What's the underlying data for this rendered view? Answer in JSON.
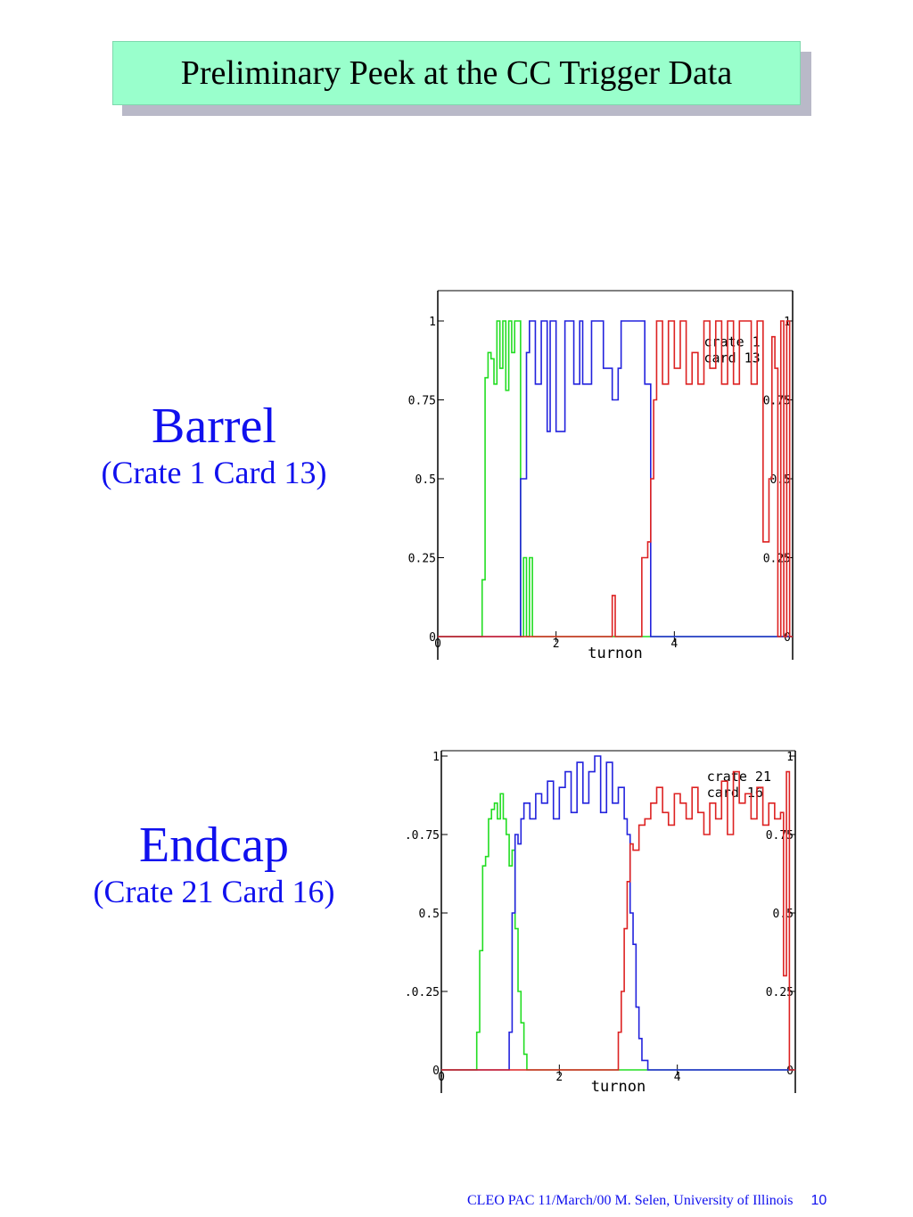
{
  "title": "Preliminary Peek at the CC Trigger Data",
  "barrel": {
    "heading": "Barrel",
    "subheading": "(Crate 1 Card 13)"
  },
  "endcap": {
    "heading": "Endcap",
    "subheading": "(Crate 21 Card 16)"
  },
  "footer": {
    "text": "CLEO PAC  11/March/00  M. Selen, University of Illinois",
    "page": "10"
  },
  "colors": {
    "green": "#22dd22",
    "blue": "#2222dd",
    "red": "#dd2222",
    "label_blue": "#1010ee",
    "title_bg": "#99ffcc"
  },
  "chart_data": [
    {
      "type": "line",
      "xlabel": "turnon",
      "xlim": [
        0,
        6
      ],
      "ylim": [
        0,
        1
      ],
      "x_ticks": [
        "0",
        "2",
        "4"
      ],
      "y_ticks_left": [
        "0",
        ".0.25",
        "0.5",
        ".0.75",
        "1"
      ],
      "y_ticks_right": [
        "0",
        "0.25",
        "0.5",
        "0.75",
        "1"
      ],
      "annotation": [
        "crate 1",
        "card 13"
      ],
      "series": [
        {
          "color": "green",
          "x": [
            0,
            0.75,
            0.8,
            0.85,
            0.9,
            0.95,
            1.0,
            1.05,
            1.1,
            1.15,
            1.2,
            1.25,
            1.3,
            1.35,
            1.4,
            1.45,
            1.5,
            1.55,
            1.6,
            6
          ],
          "y": [
            0,
            0.18,
            0.82,
            0.9,
            0.88,
            0.8,
            1.0,
            0.85,
            1.0,
            0.78,
            1.0,
            0.9,
            1.0,
            1.0,
            0.0,
            0.25,
            0.0,
            0.25,
            0.0,
            0
          ]
        },
        {
          "color": "blue",
          "x": [
            0,
            1.4,
            1.5,
            1.55,
            1.6,
            1.65,
            1.75,
            1.85,
            1.9,
            2.0,
            2.15,
            2.3,
            2.4,
            2.45,
            2.5,
            2.6,
            2.7,
            2.8,
            2.95,
            3.05,
            3.1,
            3.2,
            3.35,
            3.5,
            3.6,
            3.7,
            6
          ],
          "y": [
            0,
            0.5,
            0.9,
            1.0,
            1.0,
            0.8,
            1.0,
            0.65,
            1.0,
            0.65,
            1.0,
            0.8,
            1.0,
            0.8,
            0.8,
            1.0,
            1.0,
            0.85,
            0.75,
            0.85,
            1.0,
            1.0,
            1.0,
            0.8,
            0.0,
            0.0,
            0
          ]
        },
        {
          "color": "red",
          "x": [
            0,
            2.95,
            3.0,
            3.1,
            3.45,
            3.5,
            3.55,
            3.6,
            3.65,
            3.7,
            3.75,
            3.8,
            3.9,
            4.0,
            4.1,
            4.2,
            4.3,
            4.4,
            4.5,
            4.6,
            4.7,
            4.8,
            4.9,
            5.0,
            5.1,
            5.2,
            5.3,
            5.4,
            5.5,
            5.6,
            5.65,
            5.7,
            5.75,
            5.8,
            5.85,
            5.9,
            5.95,
            6
          ],
          "y": [
            0,
            0.13,
            0.0,
            0.0,
            0.25,
            0.25,
            0.3,
            0.5,
            0.75,
            1.0,
            1.0,
            0.8,
            1.0,
            0.85,
            1.0,
            0.8,
            0.9,
            0.8,
            1.0,
            0.85,
            1.0,
            0.8,
            1.0,
            0.8,
            1.0,
            1.0,
            0.8,
            1.0,
            0.3,
            0.5,
            0.95,
            0.85,
            0.0,
            1.0,
            0.0,
            1.0,
            0.0,
            0
          ]
        }
      ]
    },
    {
      "type": "line",
      "xlabel": "turnon",
      "xlim": [
        0,
        6
      ],
      "ylim": [
        0,
        1
      ],
      "x_ticks": [
        "0",
        "2",
        "4"
      ],
      "y_ticks_left": [
        "0",
        ".0.25",
        "0.5",
        ".0.75",
        "1"
      ],
      "y_ticks_right": [
        "0",
        "0.25",
        "0.5",
        "0.75",
        "1"
      ],
      "annotation": [
        "crate 21",
        "card 16"
      ],
      "series": [
        {
          "color": "green",
          "x": [
            0,
            0.6,
            0.65,
            0.7,
            0.75,
            0.8,
            0.85,
            0.9,
            0.95,
            1.0,
            1.05,
            1.1,
            1.15,
            1.2,
            1.25,
            1.3,
            1.35,
            1.4,
            1.45,
            6
          ],
          "y": [
            0,
            0.12,
            0.38,
            0.65,
            0.68,
            0.8,
            0.83,
            0.85,
            0.8,
            0.88,
            0.8,
            0.75,
            0.65,
            0.7,
            0.45,
            0.25,
            0.15,
            0.05,
            0.0,
            0
          ]
        },
        {
          "color": "blue",
          "x": [
            0,
            1.15,
            1.2,
            1.25,
            1.3,
            1.35,
            1.4,
            1.5,
            1.6,
            1.7,
            1.8,
            1.9,
            2.0,
            2.1,
            2.2,
            2.3,
            2.4,
            2.5,
            2.6,
            2.7,
            2.8,
            2.9,
            3.0,
            3.1,
            3.15,
            3.2,
            3.25,
            3.3,
            3.35,
            3.4,
            3.5,
            6
          ],
          "y": [
            0,
            0.12,
            0.5,
            0.75,
            0.72,
            0.8,
            0.85,
            0.8,
            0.88,
            0.85,
            0.92,
            0.8,
            0.9,
            0.95,
            0.82,
            0.98,
            0.85,
            0.95,
            1.0,
            0.82,
            0.98,
            0.85,
            0.9,
            0.8,
            0.75,
            0.5,
            0.4,
            0.2,
            0.1,
            0.03,
            0.0,
            0
          ]
        },
        {
          "color": "red",
          "x": [
            0,
            3.0,
            3.05,
            3.1,
            3.15,
            3.2,
            3.25,
            3.35,
            3.45,
            3.55,
            3.65,
            3.75,
            3.85,
            3.95,
            4.05,
            4.15,
            4.25,
            4.35,
            4.45,
            4.55,
            4.65,
            4.75,
            4.85,
            4.95,
            5.05,
            5.15,
            5.25,
            5.35,
            5.45,
            5.55,
            5.65,
            5.75,
            5.8,
            5.85,
            5.9,
            6
          ],
          "y": [
            0,
            0.12,
            0.25,
            0.45,
            0.6,
            0.72,
            0.7,
            0.78,
            0.8,
            0.85,
            0.9,
            0.82,
            0.78,
            0.88,
            0.85,
            0.8,
            0.9,
            0.82,
            0.75,
            0.85,
            0.8,
            0.92,
            0.75,
            0.95,
            0.85,
            0.88,
            0.8,
            0.9,
            0.78,
            0.85,
            0.8,
            0.82,
            0.3,
            0.95,
            0.0,
            0
          ]
        }
      ]
    }
  ]
}
